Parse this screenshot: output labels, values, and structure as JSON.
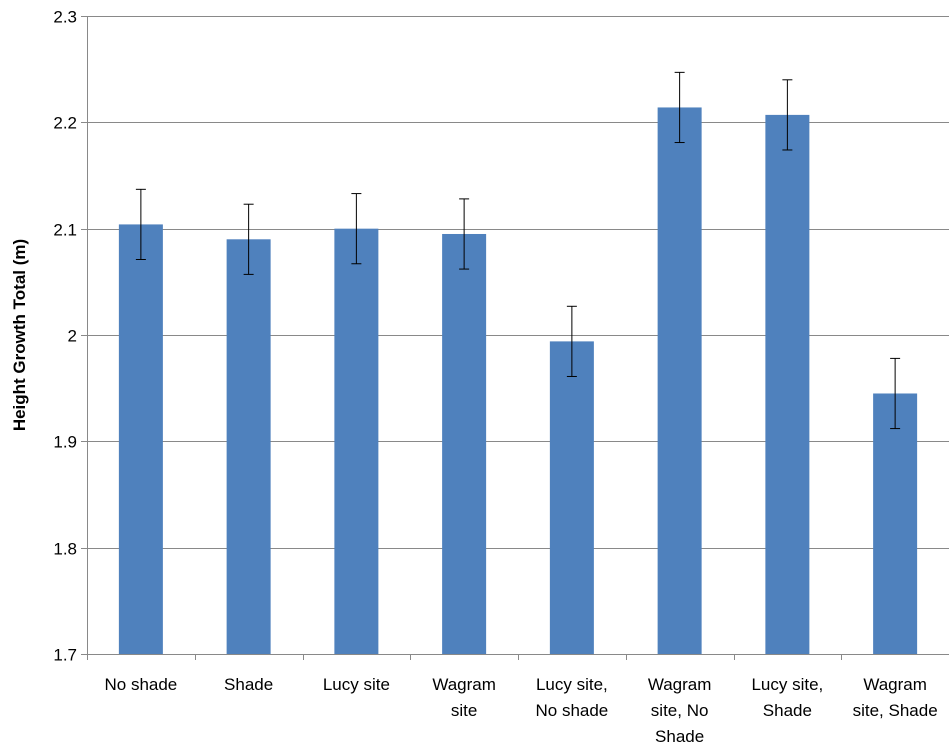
{
  "chart_data": {
    "type": "bar",
    "title": "",
    "xlabel": "",
    "ylabel": "Height Growth Total (m)",
    "ylim": [
      1.7,
      2.3
    ],
    "yticks": [
      "1.7",
      "1.8",
      "1.9",
      "2",
      "2.1",
      "2.2",
      "2.3"
    ],
    "grid": true,
    "legend": "none",
    "bar_color": "#4f81bd",
    "categories": [
      [
        "No shade"
      ],
      [
        "Shade"
      ],
      [
        "Lucy site"
      ],
      [
        "Wagram",
        "site"
      ],
      [
        "Lucy site,",
        "No shade"
      ],
      [
        "Wagram",
        "site, No",
        "Shade"
      ],
      [
        "Lucy site,",
        "Shade"
      ],
      [
        "Wagram",
        "site, Shade"
      ]
    ],
    "values": [
      2.104,
      2.09,
      2.1,
      2.095,
      1.994,
      2.214,
      2.207,
      1.945
    ],
    "error": [
      0.033,
      0.033,
      0.033,
      0.033,
      0.033,
      0.033,
      0.033,
      0.033
    ]
  }
}
